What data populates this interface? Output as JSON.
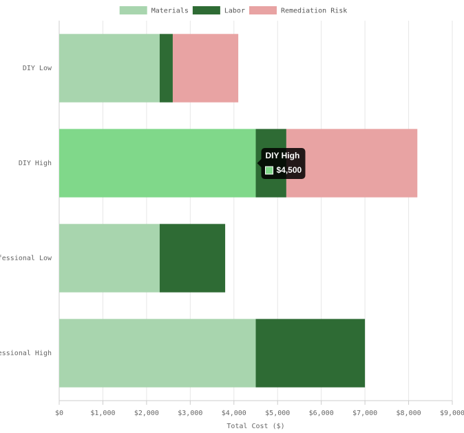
{
  "chart_data": {
    "type": "stacked-barh",
    "categories": [
      "DIY Low",
      "DIY High",
      "Professional Low",
      "Professional High"
    ],
    "series": [
      {
        "name": "Materials",
        "color": "#a8d5ae",
        "values": [
          2300,
          4500,
          2300,
          4500
        ]
      },
      {
        "name": "Labor",
        "color": "#2e6b34",
        "values": [
          300,
          700,
          1500,
          2500
        ]
      },
      {
        "name": "Remediation Risk",
        "color": "#e8a3a3",
        "values": [
          1500,
          3000,
          0,
          0
        ]
      }
    ],
    "x_label": "Total Cost ($)",
    "xlim": [
      0,
      9000
    ],
    "xticks": [
      {
        "value": 0,
        "label": "$0"
      },
      {
        "value": 1000,
        "label": "$1,000"
      },
      {
        "value": 2000,
        "label": "$2,000"
      },
      {
        "value": 3000,
        "label": "$3,000"
      },
      {
        "value": 4000,
        "label": "$4,000"
      },
      {
        "value": 5000,
        "label": "$5,000"
      },
      {
        "value": 6000,
        "label": "$6,000"
      },
      {
        "value": 7000,
        "label": "$7,000"
      },
      {
        "value": 8000,
        "label": "$8,000"
      },
      {
        "value": 9000,
        "label": "$9,000"
      }
    ],
    "grid": true,
    "legend": "top",
    "tooltip": {
      "title": "DIY High",
      "value": 4500,
      "label": "$4,500",
      "highlight_color": "#80d88a"
    }
  }
}
